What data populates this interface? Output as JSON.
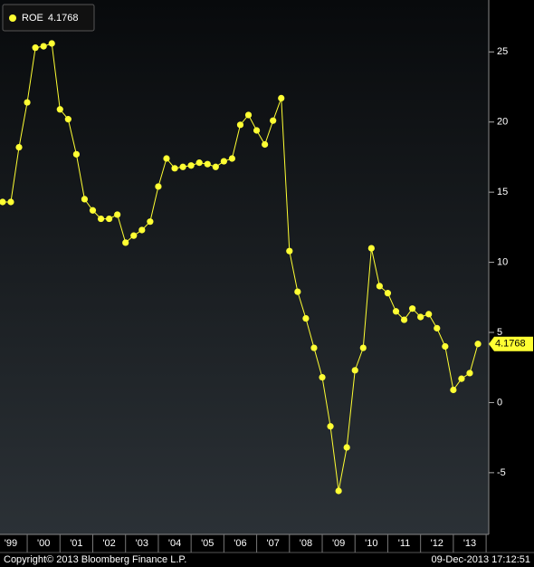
{
  "chart_data": {
    "type": "line",
    "series": [
      {
        "name": "ROE",
        "color": "#ffff33",
        "values": [
          14.3,
          14.3,
          18.2,
          21.4,
          25.3,
          25.4,
          25.6,
          20.9,
          20.2,
          17.7,
          14.5,
          13.7,
          13.1,
          13.1,
          13.4,
          11.4,
          11.9,
          12.3,
          12.9,
          15.4,
          17.4,
          16.7,
          16.8,
          16.9,
          17.1,
          17.0,
          16.8,
          17.2,
          17.4,
          19.8,
          20.5,
          19.4,
          18.4,
          20.1,
          21.7,
          10.8,
          7.9,
          6.0,
          3.9,
          1.8,
          -1.7,
          -6.3,
          -3.2,
          2.3,
          3.9,
          11.0,
          8.3,
          7.8,
          6.5,
          5.9,
          6.7,
          6.1,
          6.3,
          5.3,
          4.0,
          0.9,
          1.7,
          2.1,
          4.1768
        ]
      }
    ],
    "x": [
      1999.25,
      1999.5,
      1999.75,
      2000,
      2000.25,
      2000.5,
      2000.75,
      2001,
      2001.25,
      2001.5,
      2001.75,
      2002,
      2002.25,
      2002.5,
      2002.75,
      2003,
      2003.25,
      2003.5,
      2003.75,
      2004,
      2004.25,
      2004.5,
      2004.75,
      2005,
      2005.25,
      2005.5,
      2005.75,
      2006,
      2006.25,
      2006.5,
      2006.75,
      2007,
      2007.25,
      2007.5,
      2007.75,
      2008,
      2008.25,
      2008.5,
      2008.75,
      2009,
      2009.25,
      2009.5,
      2009.75,
      2010,
      2010.25,
      2010.5,
      2010.75,
      2011,
      2011.25,
      2011.5,
      2011.75,
      2012,
      2012.25,
      2012.5,
      2012.75,
      2013,
      2013.25,
      2013.5,
      2013.75
    ],
    "xlim": [
      1999.17,
      2014.08
    ],
    "xticks": [
      {
        "value": 1999.5,
        "label": "'99"
      },
      {
        "value": 2000.5,
        "label": "'00"
      },
      {
        "value": 2001.5,
        "label": "'01"
      },
      {
        "value": 2002.5,
        "label": "'02"
      },
      {
        "value": 2003.5,
        "label": "'03"
      },
      {
        "value": 2004.5,
        "label": "'04"
      },
      {
        "value": 2005.5,
        "label": "'05"
      },
      {
        "value": 2006.5,
        "label": "'06"
      },
      {
        "value": 2007.5,
        "label": "'07"
      },
      {
        "value": 2008.5,
        "label": "'08"
      },
      {
        "value": 2009.5,
        "label": "'09"
      },
      {
        "value": 2010.5,
        "label": "'10"
      },
      {
        "value": 2011.5,
        "label": "'11"
      },
      {
        "value": 2012.5,
        "label": "'12"
      },
      {
        "value": 2013.5,
        "label": "'13"
      }
    ],
    "ylim": [
      -9.4,
      28.7
    ],
    "yticks": [
      -5,
      0,
      5,
      10,
      15,
      20,
      25
    ],
    "y_axis_side": "right",
    "footer_left": "Copyright© 2013 Bloomberg Finance L.P.",
    "footer_right": "09-Dec-2013 17:12:51"
  }
}
